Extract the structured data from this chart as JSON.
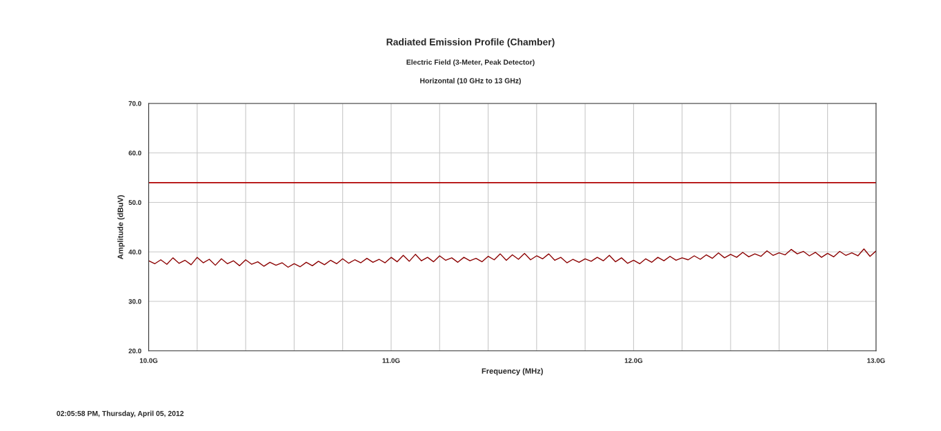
{
  "chart_data": {
    "type": "line",
    "title": "Radiated Emission Profile (Chamber)",
    "subtitle": "Electric Field (3-Meter, Peak Detector)\nHorizontal (10 GHz to 13 GHz)",
    "xlabel": "Frequency (MHz)",
    "ylabel": "Amplitude (dBuV)",
    "annotations": [
      "02:05:58 PM, Thursday, April 05, 2012"
    ],
    "x": [
      10.0,
      10.025,
      10.05,
      10.075,
      10.1,
      10.125,
      10.15,
      10.175,
      10.2,
      10.225,
      10.25,
      10.275,
      10.3,
      10.325,
      10.35,
      10.375,
      10.4,
      10.425,
      10.45,
      10.475,
      10.5,
      10.525,
      10.55,
      10.575,
      10.6,
      10.625,
      10.65,
      10.675,
      10.7,
      10.725,
      10.75,
      10.775,
      10.8,
      10.825,
      10.85,
      10.875,
      10.9,
      10.925,
      10.95,
      10.975,
      11.0,
      11.025,
      11.05,
      11.075,
      11.1,
      11.125,
      11.15,
      11.175,
      11.2,
      11.225,
      11.25,
      11.275,
      11.3,
      11.325,
      11.35,
      11.375,
      11.4,
      11.425,
      11.45,
      11.475,
      11.5,
      11.525,
      11.55,
      11.575,
      11.6,
      11.625,
      11.65,
      11.675,
      11.7,
      11.725,
      11.75,
      11.775,
      11.8,
      11.825,
      11.85,
      11.875,
      11.9,
      11.925,
      11.95,
      11.975,
      12.0,
      12.025,
      12.05,
      12.075,
      12.1,
      12.125,
      12.15,
      12.175,
      12.2,
      12.225,
      12.25,
      12.275,
      12.3,
      12.325,
      12.35,
      12.375,
      12.4,
      12.425,
      12.45,
      12.475,
      12.5,
      12.525,
      12.55,
      12.575,
      12.6,
      12.625,
      12.65,
      12.675,
      12.7,
      12.725,
      12.75,
      12.775,
      12.8,
      12.825,
      12.85,
      12.875,
      12.9,
      12.925,
      12.95,
      12.975,
      13.0
    ],
    "series": [
      {
        "color": "#8b0000",
        "values": [
          38.2,
          37.6,
          38.4,
          37.5,
          38.8,
          37.7,
          38.3,
          37.4,
          38.9,
          37.8,
          38.5,
          37.3,
          38.6,
          37.6,
          38.2,
          37.2,
          38.4,
          37.5,
          38.0,
          37.1,
          37.9,
          37.3,
          37.8,
          36.9,
          37.6,
          37.0,
          37.9,
          37.2,
          38.1,
          37.4,
          38.3,
          37.6,
          38.6,
          37.7,
          38.4,
          37.8,
          38.7,
          37.9,
          38.5,
          37.8,
          38.9,
          38.0,
          39.3,
          38.1,
          39.5,
          38.2,
          38.9,
          38.0,
          39.2,
          38.3,
          38.8,
          37.9,
          38.9,
          38.2,
          38.7,
          38.0,
          39.1,
          38.4,
          39.6,
          38.3,
          39.4,
          38.5,
          39.7,
          38.4,
          39.2,
          38.6,
          39.6,
          38.3,
          38.9,
          37.8,
          38.5,
          37.9,
          38.6,
          38.1,
          38.9,
          38.2,
          39.3,
          38.0,
          38.8,
          37.7,
          38.3,
          37.6,
          38.6,
          37.9,
          38.9,
          38.2,
          39.1,
          38.3,
          38.8,
          38.4,
          39.2,
          38.5,
          39.4,
          38.7,
          39.8,
          38.8,
          39.5,
          38.9,
          39.9,
          39.0,
          39.6,
          39.1,
          40.2,
          39.3,
          39.8,
          39.4,
          40.5,
          39.6,
          40.1,
          39.2,
          39.9,
          38.9,
          39.7,
          39.0,
          40.1,
          39.3,
          39.8,
          39.2,
          40.6,
          39.1,
          40.2
        ]
      }
    ],
    "ref_lines": [
      {
        "axis": "y",
        "value": 54,
        "color": "#b00000"
      }
    ],
    "xlim": [
      10.0,
      13.0
    ],
    "xticks": [
      {
        "value": 10.0,
        "label": "10.0G"
      },
      {
        "value": 10.2,
        "label": null
      },
      {
        "value": 10.4,
        "label": null
      },
      {
        "value": 10.6,
        "label": null
      },
      {
        "value": 10.8,
        "label": null
      },
      {
        "value": 11.0,
        "label": "11.0G"
      },
      {
        "value": 11.2,
        "label": null
      },
      {
        "value": 11.4,
        "label": null
      },
      {
        "value": 11.6,
        "label": null
      },
      {
        "value": 11.8,
        "label": null
      },
      {
        "value": 12.0,
        "label": "12.0G"
      },
      {
        "value": 12.2,
        "label": null
      },
      {
        "value": 12.4,
        "label": null
      },
      {
        "value": 12.6,
        "label": null
      },
      {
        "value": 12.8,
        "label": null
      },
      {
        "value": 13.0,
        "label": "13.0G"
      }
    ],
    "ylim": [
      20,
      70
    ],
    "yticks": [
      {
        "value": 20,
        "label": "20.0"
      },
      {
        "value": 30,
        "label": "30.0"
      },
      {
        "value": 40,
        "label": "40.0"
      },
      {
        "value": 50,
        "label": "50.0"
      },
      {
        "value": 60,
        "label": "60.0"
      },
      {
        "value": 70,
        "label": "70.0"
      }
    ],
    "grid": true,
    "legend": false,
    "marker": "none",
    "line_style": "solid"
  }
}
